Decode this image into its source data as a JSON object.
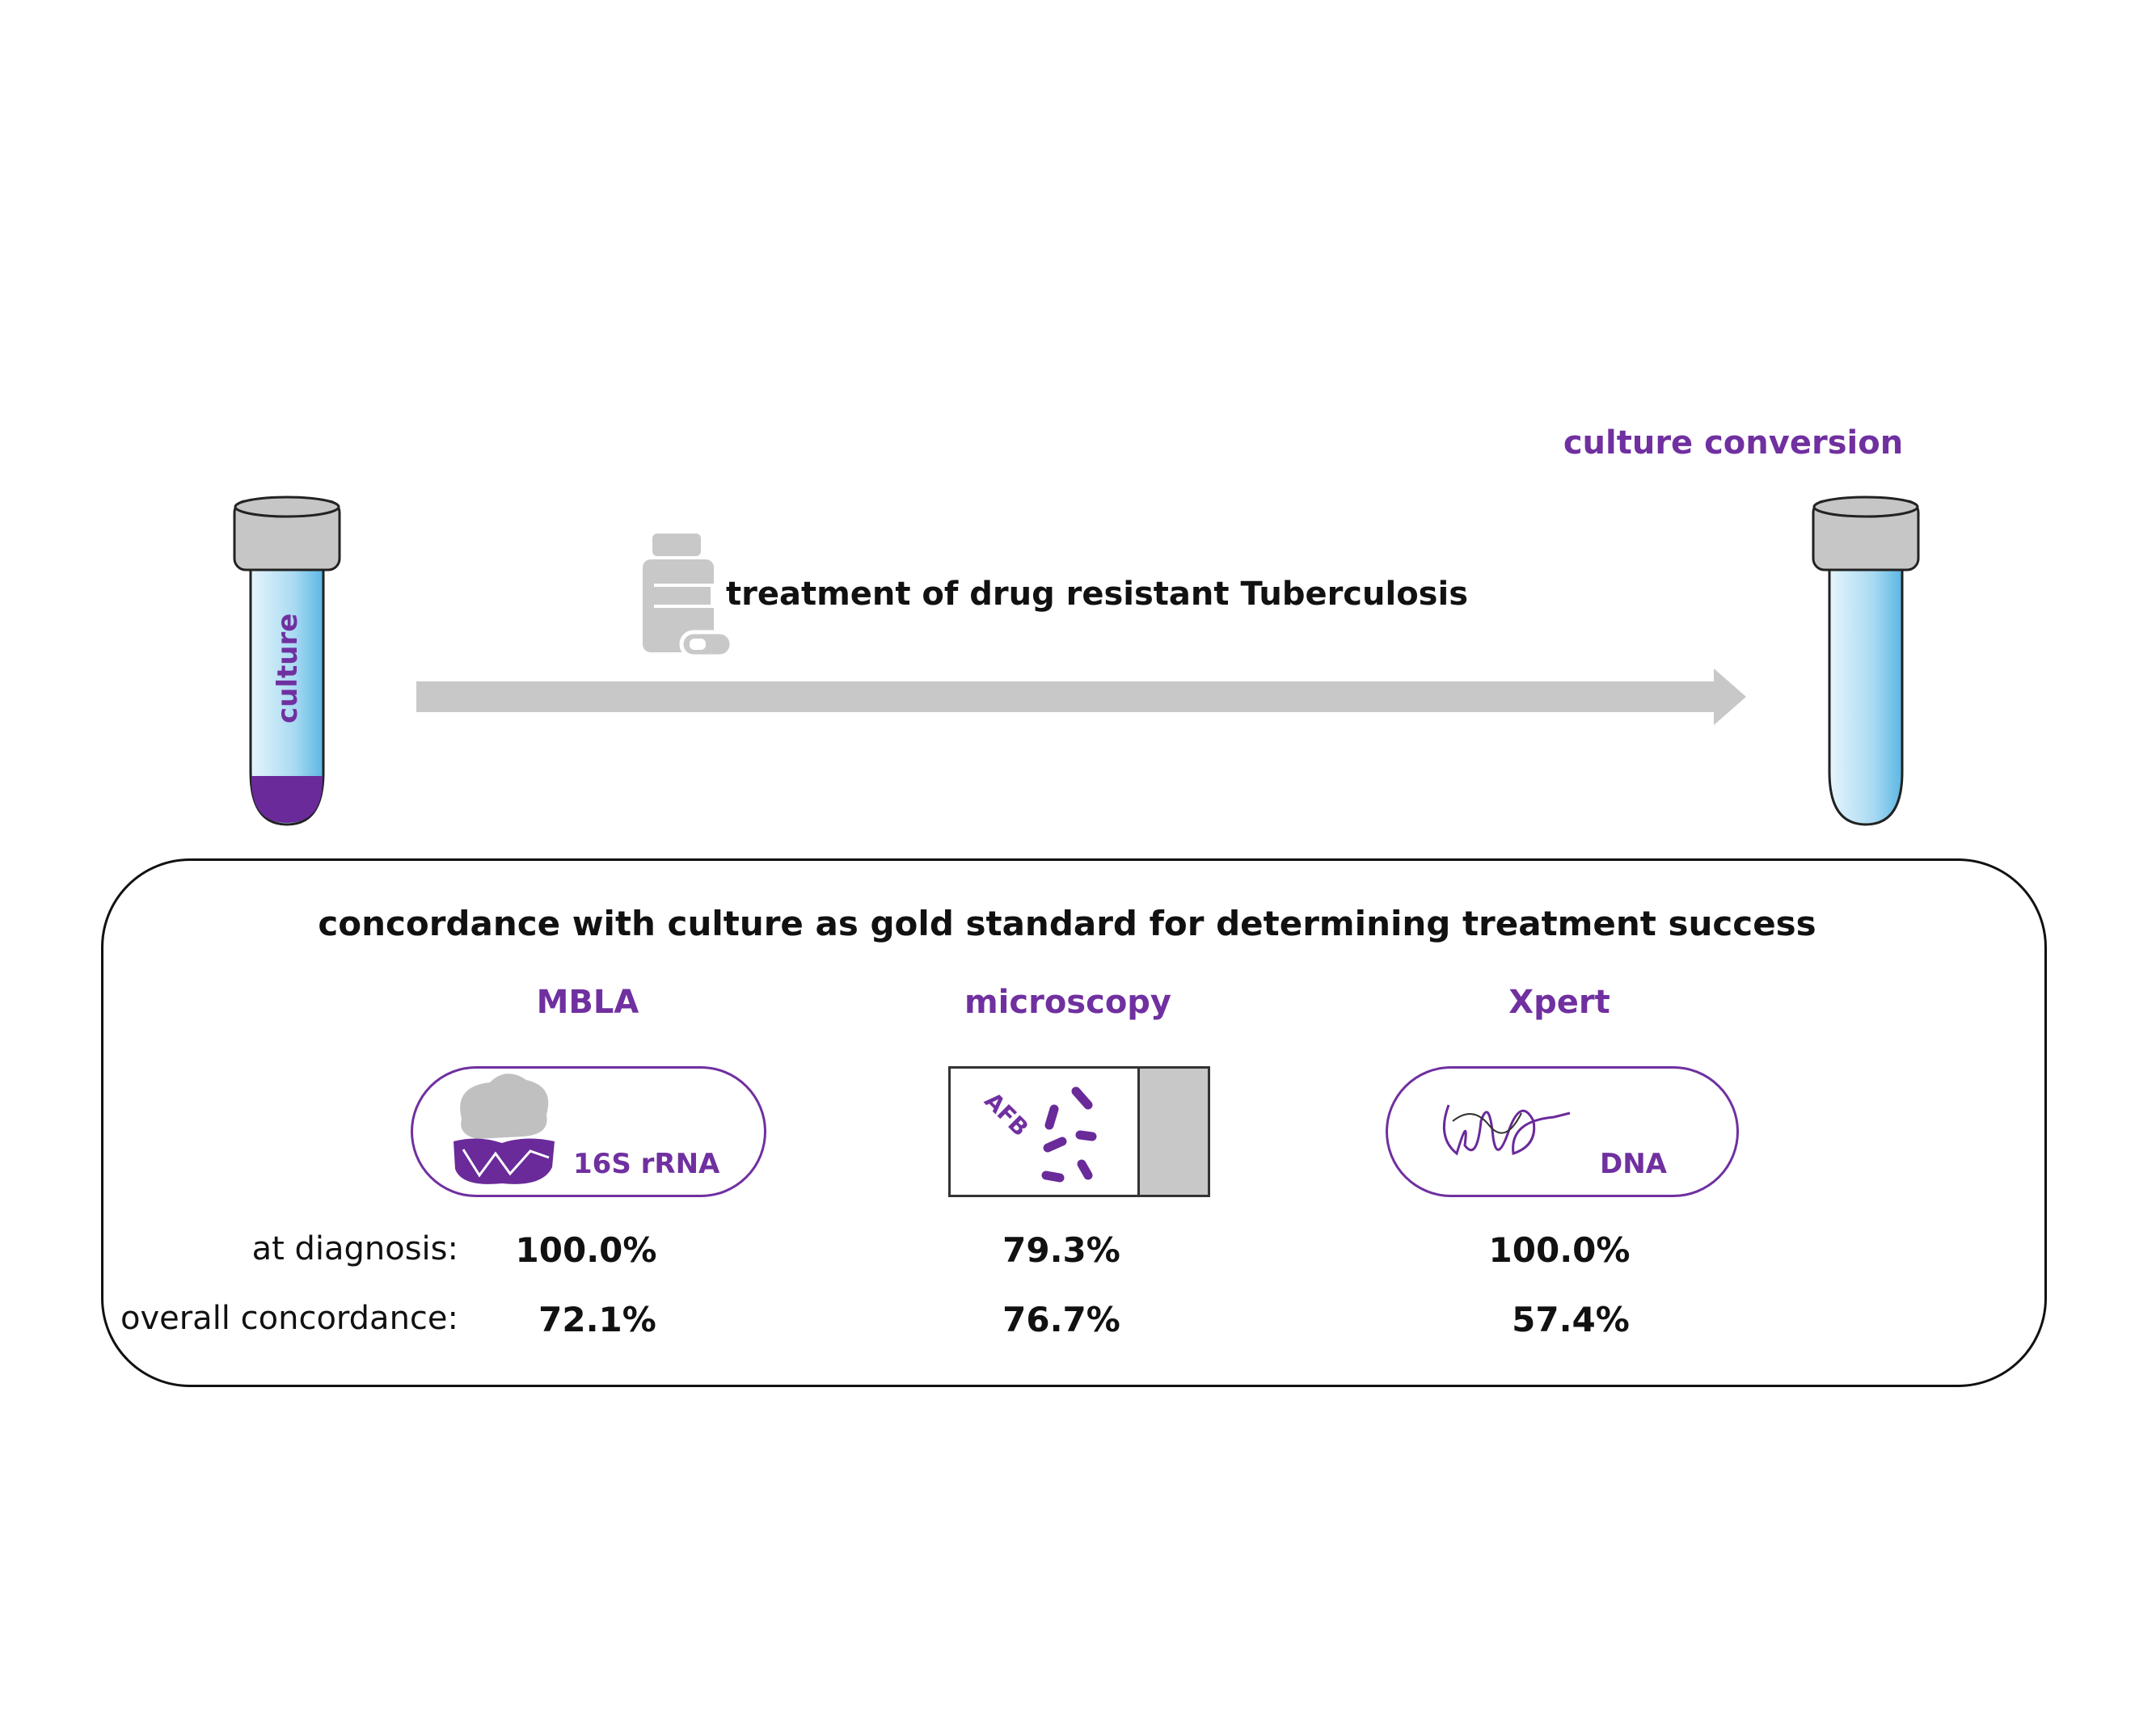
{
  "header": {
    "endpoint_label": "culture conversion",
    "treatment_label": "treatment of drug resistant Tuberculosis",
    "tube_label": "culture"
  },
  "panel": {
    "title": "concordance with culture as gold standard for determining treatment success",
    "row_labels": [
      "at diagnosis:",
      "overall concordance:"
    ],
    "methods": [
      {
        "name": "MBLA",
        "target": "16S rRNA",
        "at_diagnosis": "100.0%",
        "overall": "72.1%"
      },
      {
        "name": "microscopy",
        "target": "AFB",
        "at_diagnosis": "79.3%",
        "overall": "76.7%"
      },
      {
        "name": "Xpert",
        "target": "DNA",
        "at_diagnosis": "100.0%",
        "overall": "57.4%"
      }
    ]
  },
  "colors": {
    "accent": "#7030a0",
    "arrow": "#c8c8c8",
    "tube": "#a9daf2",
    "cap": "#c6c6c6"
  }
}
